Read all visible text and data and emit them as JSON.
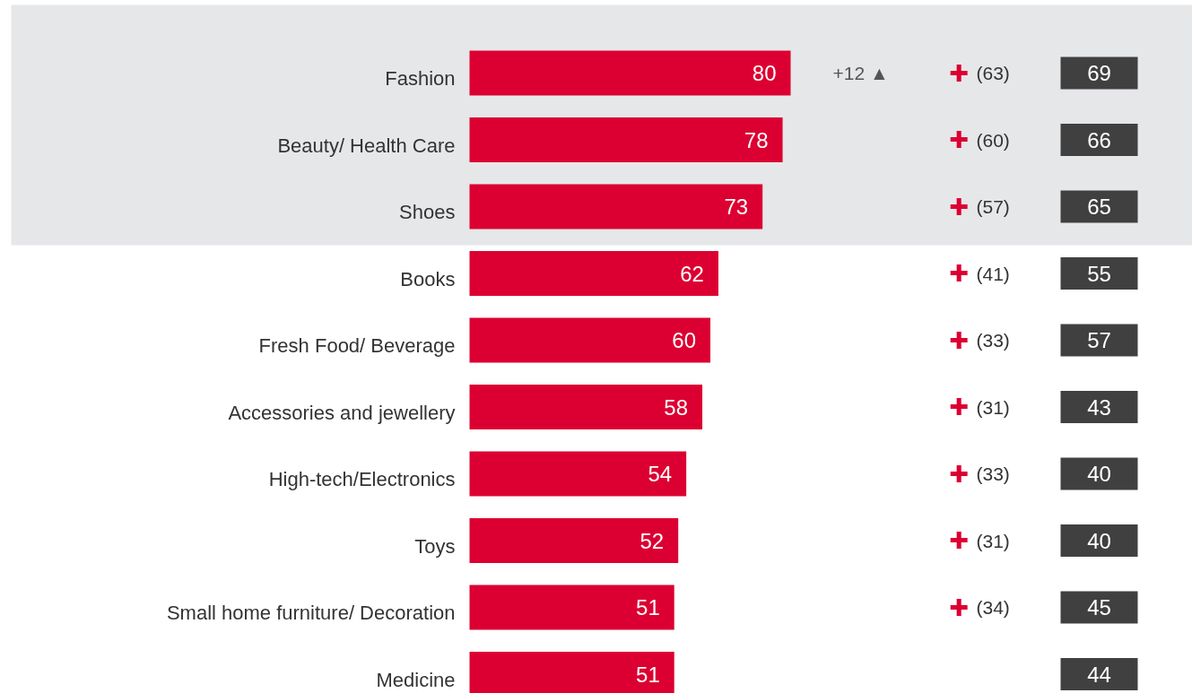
{
  "chart_data": {
    "type": "bar",
    "orientation": "horizontal",
    "data_labels": true,
    "color": "#dc0032",
    "categories": [
      "Fashion",
      "Beauty/ Health Care",
      "Shoes",
      "Books",
      "Fresh Food/ Beverage",
      "Accessories and jewellery",
      "High-tech/Electronics",
      "Toys",
      "Small home furniture/ Decoration",
      "Medicine"
    ],
    "values": [
      80,
      78,
      73,
      62,
      60,
      58,
      54,
      52,
      51,
      51
    ],
    "bands": [
      {
        "axis": "y",
        "from": "Fashion",
        "to": "Shoes",
        "color": "#e6e7e9"
      }
    ],
    "annotations": [
      "+12 ▲",
      "✚ (63)",
      "✚ (60)",
      "✚ (57)",
      "✚ (41)",
      "✚ (33)",
      "✚ (31)",
      "✚ (33)",
      "✚ (31)",
      "✚ (34)",
      "69",
      "66",
      "65",
      "55",
      "57",
      "43",
      "40",
      "40",
      "45",
      "44"
    ]
  }
}
